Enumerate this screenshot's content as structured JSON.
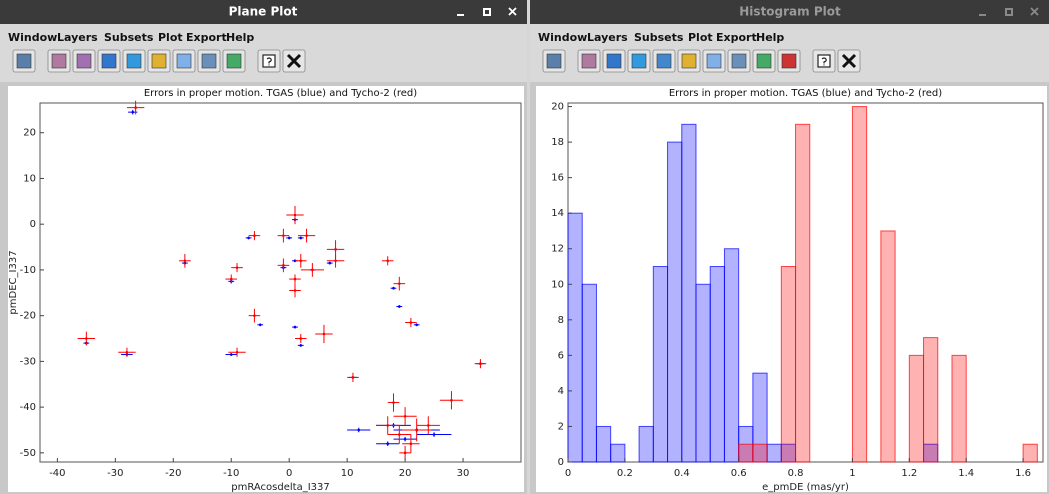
{
  "windows": [
    {
      "title": "Plane Plot",
      "menu": [
        "Window",
        "Layers",
        "Subsets",
        "Plot",
        "Export",
        "Help"
      ]
    },
    {
      "title": "Histogram Plot",
      "menu": [
        "Window",
        "Layers",
        "Subsets",
        "Plot",
        "Export",
        "Help"
      ]
    }
  ],
  "chart_data": [
    {
      "type": "scatter",
      "title": "Errors in proper motion. TGAS (blue) and Tycho-2 (red)",
      "xlabel": "pmRAcosdelta_I337",
      "ylabel": "pmDEC_I337",
      "xlim": [
        -43,
        40
      ],
      "ylim": [
        -52,
        26.5
      ],
      "xticks": [
        -40,
        -30,
        -20,
        -10,
        0,
        10,
        20,
        30
      ],
      "yticks": [
        -50,
        -40,
        -30,
        -20,
        -10,
        0,
        10,
        20
      ],
      "series": [
        {
          "color": "#0000ff",
          "x": [
            -27,
            1,
            -7,
            0,
            2,
            7,
            1,
            -1,
            4,
            -10,
            -18,
            18,
            19,
            22,
            -5,
            -10,
            -28,
            -35,
            1,
            2,
            11,
            33,
            12,
            18,
            22,
            25,
            20,
            17
          ],
          "values": [
            24.5,
            1,
            -3,
            -3,
            -3,
            -8.5,
            -8,
            -9.5,
            -10,
            -12.5,
            -8.5,
            -14,
            -18,
            -22,
            -22,
            -28.5,
            -28.5,
            -26,
            -22.5,
            -26.5,
            -33.5,
            -30.5,
            -45,
            -44,
            -45,
            -46,
            -47,
            -48
          ],
          "xerr": [
            0.8,
            0.5,
            0.5,
            0.5,
            0.5,
            0.5,
            0.5,
            0.5,
            0.5,
            0.5,
            0.5,
            0.5,
            0.5,
            0.5,
            0.5,
            1,
            1,
            0.5,
            0.5,
            0.5,
            0.7,
            0.7,
            2,
            3,
            4,
            3,
            2,
            2
          ],
          "yerr": [
            0.5,
            0.5,
            0.3,
            0.3,
            0.3,
            0.3,
            0.3,
            0.3,
            0.3,
            0.3,
            0.3,
            0.3,
            0.3,
            0.3,
            0.3,
            0.3,
            0.3,
            0.3,
            0.3,
            0.3,
            0.3,
            0.3,
            0.5,
            0.5,
            0.5,
            0.5,
            0.5,
            0.5
          ]
        },
        {
          "color": "#ff0000",
          "x": [
            -26.5,
            1,
            -6,
            -1,
            3,
            8,
            8,
            4,
            2,
            -1,
            1,
            1,
            -9,
            -10,
            -18,
            -6,
            -9,
            2,
            6,
            17,
            19,
            21,
            -35,
            -28,
            33,
            11,
            28,
            18,
            20,
            17,
            22,
            19,
            21,
            24,
            20
          ],
          "values": [
            25.5,
            2,
            -2.5,
            -2.5,
            -2.5,
            -5.5,
            -8,
            -10,
            -8,
            -9,
            -12,
            -14.5,
            -9.5,
            -12,
            -8,
            -20,
            -28,
            -25,
            -24,
            -8,
            -13,
            -21.5,
            -25,
            -28,
            -30.5,
            -33.5,
            -38.5,
            -39,
            -42,
            -44,
            -45,
            -46,
            -48,
            -44,
            -50
          ],
          "xerr": [
            1.5,
            1.5,
            1,
            1,
            1.5,
            1.5,
            1.5,
            2,
            1,
            1,
            1,
            1,
            1,
            1,
            1,
            1,
            1.5,
            1,
            1.5,
            1,
            1,
            1,
            1.5,
            1.5,
            1,
            1,
            2,
            1,
            2,
            2,
            2.5,
            2,
            1.5,
            2,
            1
          ],
          "yerr": [
            1.5,
            2,
            1,
            1.5,
            1.5,
            2,
            1.5,
            1.5,
            1.5,
            1.5,
            1,
            1.5,
            1,
            1,
            1.5,
            1.5,
            1,
            1,
            2,
            1,
            1.5,
            1,
            1.5,
            1,
            1,
            1,
            2,
            2,
            2,
            2,
            2.5,
            2,
            2,
            2,
            1.5
          ]
        }
      ]
    },
    {
      "type": "histogram",
      "title": "Errors in proper motion. TGAS (blue) and Tycho-2 (red)",
      "xlabel": "e_pmDE (mas/yr)",
      "xlim": [
        0,
        1.67
      ],
      "ylim": [
        0,
        20.2
      ],
      "xticks": [
        0,
        0.2,
        0.4,
        0.6,
        0.8,
        1,
        1.2,
        1.4,
        1.6
      ],
      "yticks": [
        0,
        2,
        4,
        6,
        8,
        10,
        12,
        14,
        16,
        18,
        20
      ],
      "bins": [
        0,
        0.05,
        0.1,
        0.15,
        0.2,
        0.25,
        0.3,
        0.35,
        0.4,
        0.45,
        0.5,
        0.55,
        0.6,
        0.65,
        0.7,
        0.75,
        0.8,
        0.85,
        0.9,
        0.95,
        1,
        1.05,
        1.1,
        1.15,
        1.2,
        1.25,
        1.3,
        1.35,
        1.4,
        1.45,
        1.5,
        1.55,
        1.6,
        1.65
      ],
      "series": [
        {
          "color": "#0000ff",
          "values": [
            14,
            10,
            2,
            1,
            0,
            2,
            11,
            18,
            19,
            10,
            11,
            12,
            2,
            5,
            1,
            1,
            0,
            0,
            0,
            0,
            0,
            0,
            0,
            0,
            0,
            1,
            0,
            0,
            0,
            0,
            0,
            0,
            0
          ]
        },
        {
          "color": "#ff0000",
          "values": [
            0,
            0,
            0,
            0,
            0,
            0,
            0,
            0,
            0,
            0,
            0,
            0,
            1,
            1,
            0,
            11,
            19,
            0,
            0,
            0,
            20,
            0,
            13,
            0,
            6,
            7,
            0,
            6,
            0,
            0,
            0,
            0,
            1
          ]
        }
      ]
    }
  ]
}
